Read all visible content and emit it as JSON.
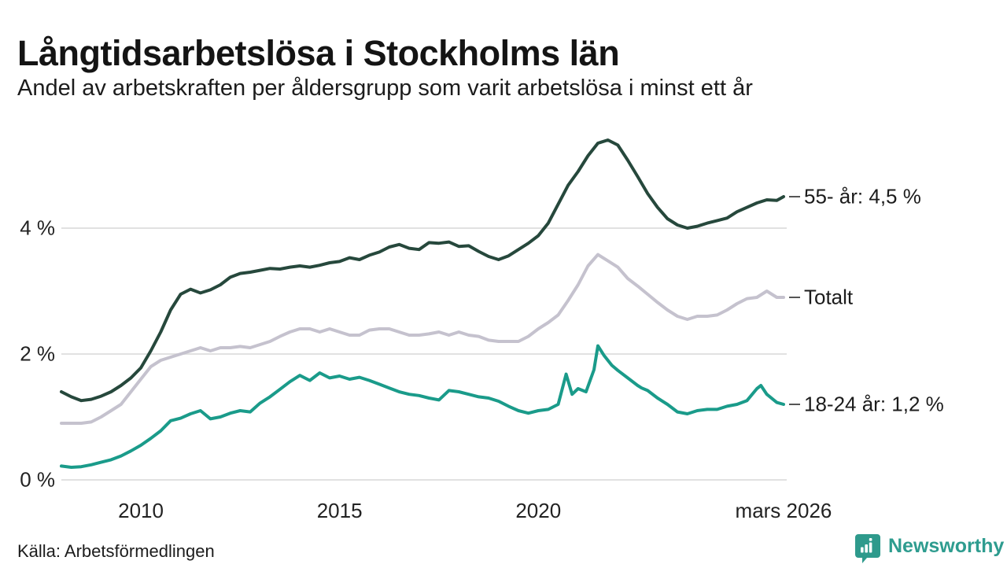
{
  "header": {
    "title": "Långtidsarbetslösa i Stockholms län",
    "subtitle": "Andel av arbetskraften per åldersgrupp som varit arbetslösa i minst ett år"
  },
  "chart_data": {
    "type": "line",
    "title": "Långtidsarbetslösa i Stockholms län",
    "subtitle": "Andel av arbetskraften per åldersgrupp som varit arbetslösa i minst ett år",
    "x_unit": "decimal_year",
    "xlim": [
      2008.0,
      2026.25
    ],
    "ylim": [
      0,
      5.75
    ],
    "grid": "horizontal",
    "grid_color": "#e1e1e1",
    "legend_position": "right-end-labels",
    "yticks": [
      {
        "value": 0,
        "label": "0 %"
      },
      {
        "value": 2,
        "label": "2 %"
      },
      {
        "value": 4,
        "label": "4 %"
      }
    ],
    "xticks": [
      {
        "value": 2010.0,
        "label": "2010"
      },
      {
        "value": 2015.0,
        "label": "2015"
      },
      {
        "value": 2020.0,
        "label": "2020"
      },
      {
        "value": 2026.17,
        "label": "mars 2026"
      }
    ],
    "series": [
      {
        "name": "55- år",
        "end_label": "55- år: 4,5 %",
        "color": "#26483C",
        "points": [
          [
            2008.0,
            1.4
          ],
          [
            2008.25,
            1.32
          ],
          [
            2008.5,
            1.26
          ],
          [
            2008.75,
            1.28
          ],
          [
            2009.0,
            1.33
          ],
          [
            2009.25,
            1.4
          ],
          [
            2009.5,
            1.5
          ],
          [
            2009.75,
            1.62
          ],
          [
            2010.0,
            1.78
          ],
          [
            2010.25,
            2.05
          ],
          [
            2010.5,
            2.35
          ],
          [
            2010.75,
            2.7
          ],
          [
            2011.0,
            2.95
          ],
          [
            2011.25,
            3.03
          ],
          [
            2011.5,
            2.97
          ],
          [
            2011.75,
            3.02
          ],
          [
            2012.0,
            3.1
          ],
          [
            2012.25,
            3.22
          ],
          [
            2012.5,
            3.28
          ],
          [
            2012.75,
            3.3
          ],
          [
            2013.0,
            3.33
          ],
          [
            2013.25,
            3.36
          ],
          [
            2013.5,
            3.35
          ],
          [
            2013.75,
            3.38
          ],
          [
            2014.0,
            3.4
          ],
          [
            2014.25,
            3.38
          ],
          [
            2014.5,
            3.41
          ],
          [
            2014.75,
            3.45
          ],
          [
            2015.0,
            3.47
          ],
          [
            2015.25,
            3.53
          ],
          [
            2015.5,
            3.5
          ],
          [
            2015.75,
            3.57
          ],
          [
            2016.0,
            3.62
          ],
          [
            2016.25,
            3.7
          ],
          [
            2016.5,
            3.74
          ],
          [
            2016.75,
            3.68
          ],
          [
            2017.0,
            3.66
          ],
          [
            2017.25,
            3.77
          ],
          [
            2017.5,
            3.76
          ],
          [
            2017.75,
            3.78
          ],
          [
            2018.0,
            3.71
          ],
          [
            2018.25,
            3.72
          ],
          [
            2018.5,
            3.63
          ],
          [
            2018.75,
            3.55
          ],
          [
            2019.0,
            3.5
          ],
          [
            2019.25,
            3.56
          ],
          [
            2019.5,
            3.66
          ],
          [
            2019.75,
            3.76
          ],
          [
            2020.0,
            3.88
          ],
          [
            2020.25,
            4.08
          ],
          [
            2020.5,
            4.38
          ],
          [
            2020.75,
            4.68
          ],
          [
            2021.0,
            4.9
          ],
          [
            2021.25,
            5.15
          ],
          [
            2021.5,
            5.35
          ],
          [
            2021.75,
            5.4
          ],
          [
            2022.0,
            5.32
          ],
          [
            2022.25,
            5.08
          ],
          [
            2022.5,
            4.82
          ],
          [
            2022.75,
            4.55
          ],
          [
            2023.0,
            4.33
          ],
          [
            2023.25,
            4.15
          ],
          [
            2023.5,
            4.05
          ],
          [
            2023.75,
            4.0
          ],
          [
            2024.0,
            4.03
          ],
          [
            2024.25,
            4.08
          ],
          [
            2024.5,
            4.12
          ],
          [
            2024.75,
            4.16
          ],
          [
            2025.0,
            4.26
          ],
          [
            2025.25,
            4.33
          ],
          [
            2025.5,
            4.4
          ],
          [
            2025.75,
            4.45
          ],
          [
            2026.0,
            4.44
          ],
          [
            2026.17,
            4.5
          ]
        ]
      },
      {
        "name": "Totalt",
        "end_label": "Totalt",
        "color": "#C5C2CE",
        "points": [
          [
            2008.0,
            0.9
          ],
          [
            2008.25,
            0.9
          ],
          [
            2008.5,
            0.9
          ],
          [
            2008.75,
            0.92
          ],
          [
            2009.0,
            1.0
          ],
          [
            2009.25,
            1.1
          ],
          [
            2009.5,
            1.2
          ],
          [
            2009.75,
            1.4
          ],
          [
            2010.0,
            1.6
          ],
          [
            2010.25,
            1.8
          ],
          [
            2010.5,
            1.9
          ],
          [
            2010.75,
            1.95
          ],
          [
            2011.0,
            2.0
          ],
          [
            2011.25,
            2.05
          ],
          [
            2011.5,
            2.1
          ],
          [
            2011.75,
            2.05
          ],
          [
            2012.0,
            2.1
          ],
          [
            2012.25,
            2.1
          ],
          [
            2012.5,
            2.12
          ],
          [
            2012.75,
            2.1
          ],
          [
            2013.0,
            2.15
          ],
          [
            2013.25,
            2.2
          ],
          [
            2013.5,
            2.28
          ],
          [
            2013.75,
            2.35
          ],
          [
            2014.0,
            2.4
          ],
          [
            2014.25,
            2.4
          ],
          [
            2014.5,
            2.35
          ],
          [
            2014.75,
            2.4
          ],
          [
            2015.0,
            2.35
          ],
          [
            2015.25,
            2.3
          ],
          [
            2015.5,
            2.3
          ],
          [
            2015.75,
            2.38
          ],
          [
            2016.0,
            2.4
          ],
          [
            2016.25,
            2.4
          ],
          [
            2016.5,
            2.35
          ],
          [
            2016.75,
            2.3
          ],
          [
            2017.0,
            2.3
          ],
          [
            2017.25,
            2.32
          ],
          [
            2017.5,
            2.35
          ],
          [
            2017.75,
            2.3
          ],
          [
            2018.0,
            2.35
          ],
          [
            2018.25,
            2.3
          ],
          [
            2018.5,
            2.28
          ],
          [
            2018.75,
            2.22
          ],
          [
            2019.0,
            2.2
          ],
          [
            2019.25,
            2.2
          ],
          [
            2019.5,
            2.2
          ],
          [
            2019.75,
            2.28
          ],
          [
            2020.0,
            2.4
          ],
          [
            2020.25,
            2.5
          ],
          [
            2020.5,
            2.62
          ],
          [
            2020.75,
            2.85
          ],
          [
            2021.0,
            3.1
          ],
          [
            2021.25,
            3.4
          ],
          [
            2021.5,
            3.58
          ],
          [
            2021.75,
            3.48
          ],
          [
            2022.0,
            3.38
          ],
          [
            2022.25,
            3.2
          ],
          [
            2022.5,
            3.08
          ],
          [
            2022.75,
            2.95
          ],
          [
            2023.0,
            2.82
          ],
          [
            2023.25,
            2.7
          ],
          [
            2023.5,
            2.6
          ],
          [
            2023.75,
            2.55
          ],
          [
            2024.0,
            2.6
          ],
          [
            2024.25,
            2.6
          ],
          [
            2024.5,
            2.62
          ],
          [
            2024.75,
            2.7
          ],
          [
            2025.0,
            2.8
          ],
          [
            2025.25,
            2.88
          ],
          [
            2025.5,
            2.9
          ],
          [
            2025.75,
            3.0
          ],
          [
            2026.0,
            2.9
          ],
          [
            2026.17,
            2.9
          ]
        ]
      },
      {
        "name": "18-24 år",
        "end_label": "18-24 år: 1,2 %",
        "color": "#1A9B8A",
        "points": [
          [
            2008.0,
            0.22
          ],
          [
            2008.25,
            0.2
          ],
          [
            2008.5,
            0.21
          ],
          [
            2008.75,
            0.24
          ],
          [
            2009.0,
            0.28
          ],
          [
            2009.25,
            0.32
          ],
          [
            2009.5,
            0.38
          ],
          [
            2009.75,
            0.46
          ],
          [
            2010.0,
            0.55
          ],
          [
            2010.25,
            0.66
          ],
          [
            2010.5,
            0.78
          ],
          [
            2010.75,
            0.94
          ],
          [
            2011.0,
            0.98
          ],
          [
            2011.25,
            1.05
          ],
          [
            2011.5,
            1.1
          ],
          [
            2011.75,
            0.97
          ],
          [
            2012.0,
            1.0
          ],
          [
            2012.25,
            1.06
          ],
          [
            2012.5,
            1.1
          ],
          [
            2012.75,
            1.08
          ],
          [
            2013.0,
            1.22
          ],
          [
            2013.25,
            1.32
          ],
          [
            2013.5,
            1.44
          ],
          [
            2013.75,
            1.56
          ],
          [
            2014.0,
            1.66
          ],
          [
            2014.25,
            1.58
          ],
          [
            2014.5,
            1.7
          ],
          [
            2014.75,
            1.62
          ],
          [
            2015.0,
            1.65
          ],
          [
            2015.25,
            1.6
          ],
          [
            2015.5,
            1.63
          ],
          [
            2015.75,
            1.58
          ],
          [
            2016.0,
            1.52
          ],
          [
            2016.25,
            1.46
          ],
          [
            2016.5,
            1.4
          ],
          [
            2016.75,
            1.36
          ],
          [
            2017.0,
            1.34
          ],
          [
            2017.25,
            1.3
          ],
          [
            2017.5,
            1.27
          ],
          [
            2017.75,
            1.42
          ],
          [
            2018.0,
            1.4
          ],
          [
            2018.25,
            1.36
          ],
          [
            2018.5,
            1.32
          ],
          [
            2018.75,
            1.3
          ],
          [
            2019.0,
            1.25
          ],
          [
            2019.25,
            1.17
          ],
          [
            2019.5,
            1.1
          ],
          [
            2019.75,
            1.06
          ],
          [
            2020.0,
            1.1
          ],
          [
            2020.25,
            1.12
          ],
          [
            2020.5,
            1.2
          ],
          [
            2020.7,
            1.68
          ],
          [
            2020.85,
            1.36
          ],
          [
            2021.0,
            1.45
          ],
          [
            2021.2,
            1.4
          ],
          [
            2021.4,
            1.75
          ],
          [
            2021.5,
            2.13
          ],
          [
            2021.65,
            1.98
          ],
          [
            2021.85,
            1.82
          ],
          [
            2022.0,
            1.74
          ],
          [
            2022.25,
            1.62
          ],
          [
            2022.5,
            1.5
          ],
          [
            2022.6,
            1.46
          ],
          [
            2022.75,
            1.42
          ],
          [
            2023.0,
            1.3
          ],
          [
            2023.25,
            1.2
          ],
          [
            2023.5,
            1.08
          ],
          [
            2023.75,
            1.05
          ],
          [
            2024.0,
            1.1
          ],
          [
            2024.25,
            1.12
          ],
          [
            2024.5,
            1.12
          ],
          [
            2024.75,
            1.17
          ],
          [
            2025.0,
            1.2
          ],
          [
            2025.25,
            1.26
          ],
          [
            2025.5,
            1.45
          ],
          [
            2025.6,
            1.5
          ],
          [
            2025.75,
            1.36
          ],
          [
            2026.0,
            1.23
          ],
          [
            2026.17,
            1.2
          ]
        ]
      }
    ]
  },
  "footer": {
    "source": "Källa: Arbetsförmedlingen",
    "brand": "Newsworthy"
  },
  "colors": {
    "series_55": "#26483C",
    "series_total": "#C5C2CE",
    "series_18_24": "#1A9B8A",
    "gridline": "#e1e1e1",
    "leader_dash": "#555555",
    "brand_teal": "#2E9C8F",
    "text": "#1a1a1a"
  }
}
